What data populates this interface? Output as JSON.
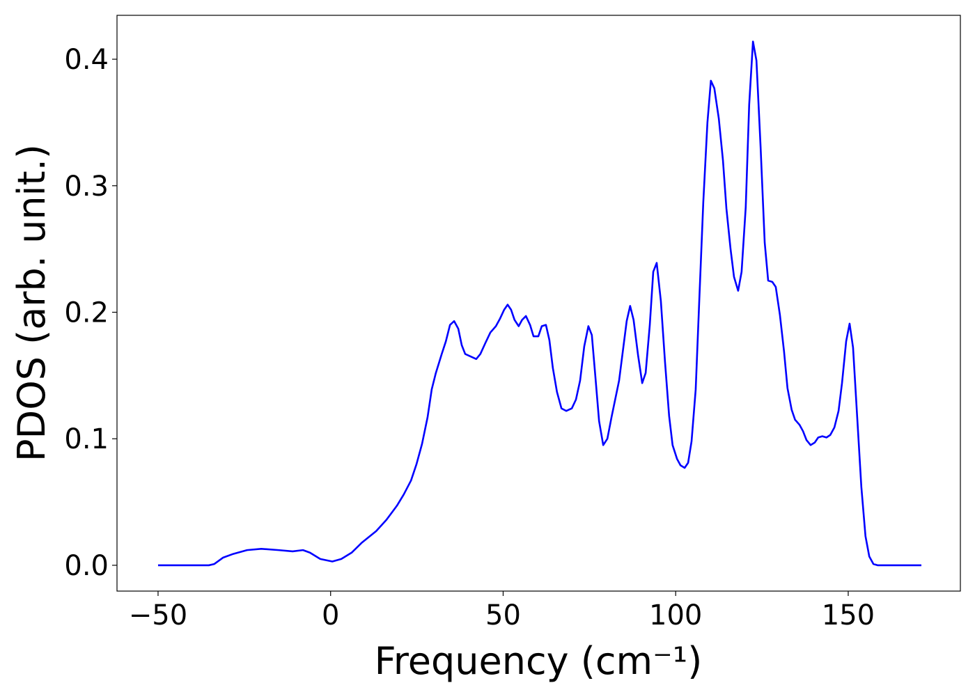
{
  "chart_data": {
    "type": "line",
    "xlabel": "Frequency (cm⁻¹)",
    "ylabel": "PDOS (arb. unit.)",
    "xlim": [
      -61.9,
      182.5
    ],
    "ylim": [
      -0.0204,
      0.4347
    ],
    "xticks": [
      {
        "value": -50,
        "label": "−50"
      },
      0,
      50,
      100,
      150
    ],
    "yticks": [
      {
        "value": 0,
        "label": "0.0"
      },
      0.1,
      0.2,
      0.3,
      0.4
    ],
    "grid": false,
    "series": [
      {
        "color": "#0000ff",
        "x": [
          -50,
          -35.3,
          -33.7,
          -31.2,
          -28.2,
          -24.2,
          -20.1,
          -15.1,
          -11.0,
          -8.0,
          -6.0,
          -3.0,
          0.5,
          3.1,
          6.1,
          9.1,
          13.2,
          16.2,
          19.2,
          21.2,
          23.3,
          24.9,
          26.5,
          28.1,
          29.3,
          30.5,
          32.2,
          33.4,
          34.6,
          35.8,
          37.0,
          38.0,
          39.0,
          42.2,
          43.4,
          44.9,
          46.3,
          47.9,
          49.1,
          50.3,
          51.3,
          52.3,
          53.3,
          54.5,
          55.5,
          56.6,
          57.8,
          58.8,
          60.2,
          61.2,
          62.4,
          63.4,
          64.4,
          65.6,
          66.9,
          68.3,
          69.9,
          71.1,
          72.3,
          73.5,
          74.7,
          75.7,
          76.7,
          77.8,
          79.0,
          80.2,
          81.4,
          83.6,
          85.8,
          86.8,
          87.8,
          89.1,
          90.3,
          91.3,
          92.5,
          93.5,
          94.5,
          95.7,
          96.9,
          98.1,
          99.1,
          100.4,
          101.4,
          102.6,
          103.6,
          104.6,
          105.8,
          106.8,
          108.0,
          109.2,
          110.2,
          111.2,
          112.5,
          113.7,
          114.7,
          115.9,
          116.9,
          118.1,
          119.1,
          120.3,
          121.3,
          122.4,
          123.4,
          124.6,
          125.8,
          126.8,
          128.0,
          129.0,
          130.2,
          131.4,
          132.4,
          133.6,
          134.6,
          135.9,
          136.9,
          137.9,
          139.1,
          140.3,
          141.3,
          142.5,
          143.7,
          144.8,
          146.0,
          147.2,
          148.2,
          149.4,
          150.4,
          151.4,
          152.6,
          153.8,
          155.0,
          156.1,
          157.3,
          158.5,
          171.2
        ],
        "values": [
          0,
          0,
          0.001,
          0.006,
          0.009,
          0.012,
          0.013,
          0.012,
          0.011,
          0.012,
          0.01,
          0.005,
          0.003,
          0.005,
          0.01,
          0.018,
          0.027,
          0.036,
          0.047,
          0.056,
          0.067,
          0.08,
          0.096,
          0.117,
          0.139,
          0.152,
          0.167,
          0.177,
          0.19,
          0.193,
          0.187,
          0.174,
          0.167,
          0.163,
          0.167,
          0.176,
          0.184,
          0.189,
          0.195,
          0.202,
          0.206,
          0.202,
          0.194,
          0.189,
          0.194,
          0.197,
          0.19,
          0.181,
          0.181,
          0.189,
          0.19,
          0.178,
          0.156,
          0.137,
          0.124,
          0.122,
          0.124,
          0.131,
          0.146,
          0.173,
          0.189,
          0.182,
          0.15,
          0.114,
          0.095,
          0.1,
          0.117,
          0.146,
          0.193,
          0.205,
          0.194,
          0.166,
          0.144,
          0.152,
          0.19,
          0.232,
          0.239,
          0.209,
          0.161,
          0.118,
          0.095,
          0.084,
          0.079,
          0.077,
          0.081,
          0.098,
          0.139,
          0.207,
          0.287,
          0.35,
          0.383,
          0.377,
          0.353,
          0.32,
          0.282,
          0.25,
          0.228,
          0.217,
          0.232,
          0.283,
          0.364,
          0.414,
          0.399,
          0.331,
          0.255,
          0.225,
          0.224,
          0.22,
          0.198,
          0.169,
          0.14,
          0.123,
          0.115,
          0.111,
          0.106,
          0.099,
          0.095,
          0.097,
          0.101,
          0.102,
          0.101,
          0.103,
          0.109,
          0.122,
          0.144,
          0.177,
          0.191,
          0.172,
          0.117,
          0.062,
          0.023,
          0.007,
          0.001,
          0,
          0
        ]
      }
    ]
  }
}
